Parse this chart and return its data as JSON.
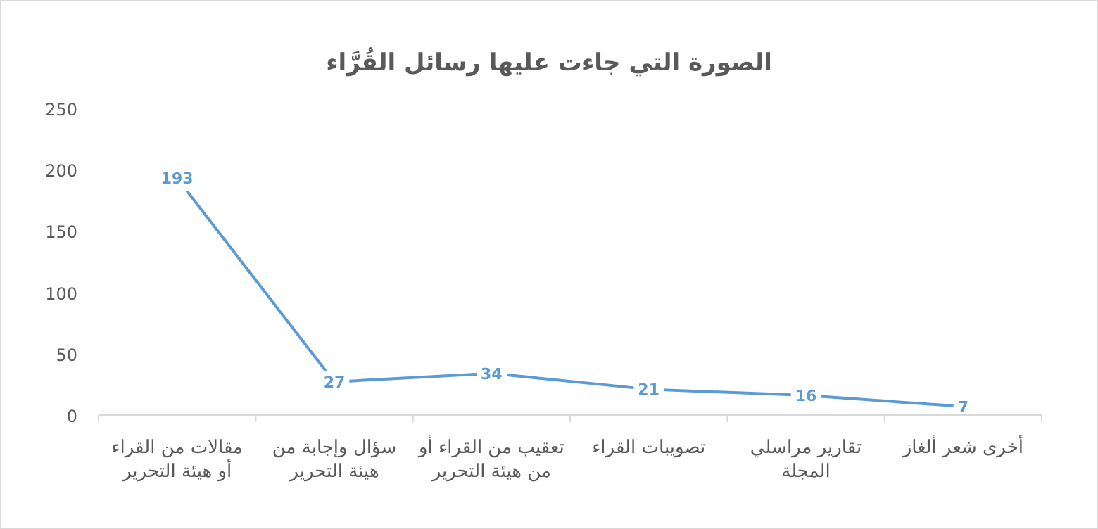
{
  "chart_data": {
    "type": "line",
    "title": "الصورة التي جاءت عليها رسائل القُرَّاء",
    "categories": [
      "مقالات من القراء أو هيئة التحرير",
      "سؤال وإجابة من هيئة التحرير",
      "تعقيب من القراء أو من هيئة التحرير",
      "تصويبات القراء",
      "تقارير مراسلي المجلة",
      "أخرى شعر ألغاز"
    ],
    "series": [
      {
        "color": "#5b9bd5",
        "values": [
          193,
          27,
          34,
          21,
          16,
          7
        ]
      }
    ],
    "ylim": [
      0,
      250
    ],
    "yticks": [
      0,
      50,
      100,
      150,
      200,
      250
    ],
    "grid": false,
    "marker": "none",
    "line_style": "solid",
    "data_labels": true
  }
}
